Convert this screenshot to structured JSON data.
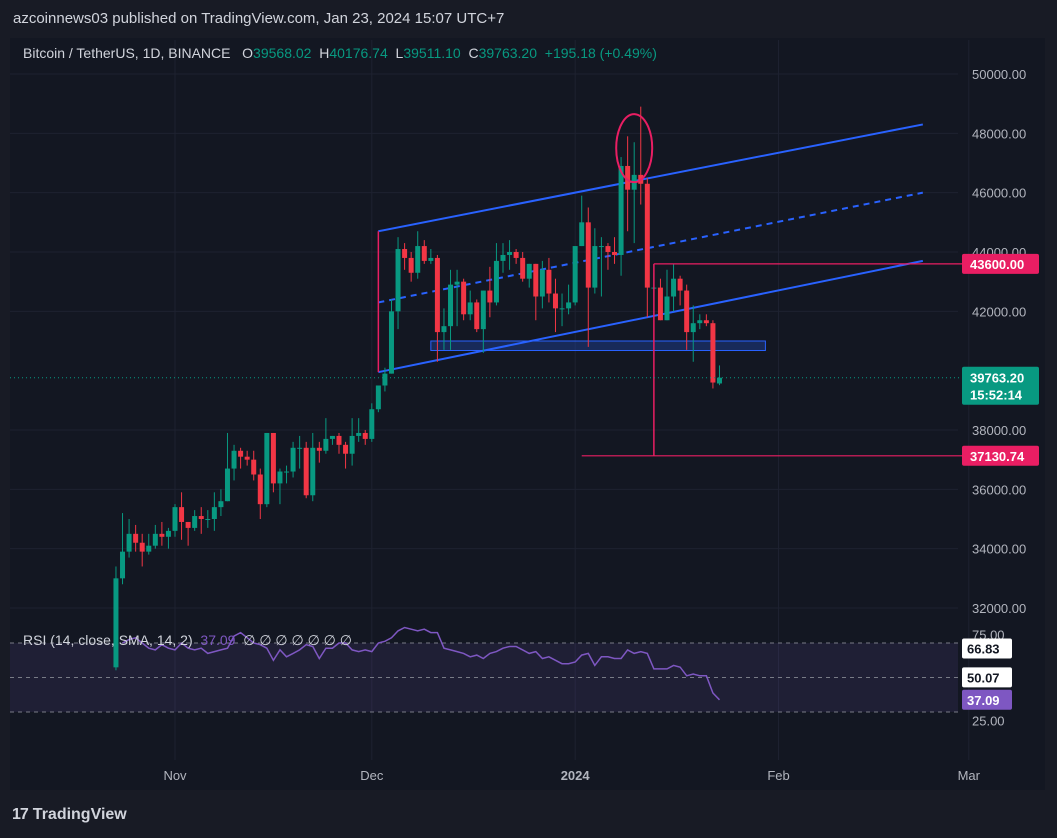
{
  "header": {
    "published": "azcoinnews03 published on TradingView.com, Jan 23, 2024 15:07 UTC+7"
  },
  "legend": {
    "symbol": "Bitcoin / TetherUS, 1D, BINANCE",
    "o_label": "O",
    "o": "39568.02",
    "h_label": "H",
    "h": "40176.74",
    "l_label": "L",
    "l": "39511.10",
    "c_label": "C",
    "c": "39763.20",
    "change": "+195.18 (+0.49%)"
  },
  "rsi_legend": {
    "title": "RSI (14, close, SMA, 14, 2)",
    "value": "37.09",
    "placeholders": "∅ ∅ ∅ ∅ ∅ ∅ ∅"
  },
  "footer": {
    "brand": "TradingView",
    "logo": "17"
  },
  "colors": {
    "up": "#089981",
    "down": "#f23645",
    "channel": "#2962ff",
    "level": "#e91e63",
    "rsi": "#7e57c2",
    "zone": "#2962ff"
  },
  "chart_data": {
    "type": "candlestick",
    "y_ticks": [
      "50000.00",
      "48000.00",
      "46000.00",
      "44000.00",
      "42000.00",
      "38000.00",
      "36000.00",
      "34000.00",
      "32000.00"
    ],
    "ylim": [
      31500,
      50800
    ],
    "x_ticks": [
      "Nov",
      "Dec",
      "2024",
      "Feb",
      "Mar"
    ],
    "x_tick_dates": [
      "2023-11-01",
      "2023-12-01",
      "2024-01-01",
      "2024-02-01",
      "2024-03-01"
    ],
    "ohlc": [
      [
        "2023-10-23",
        30000,
        33400,
        29900,
        33000
      ],
      [
        "2023-10-24",
        33000,
        35200,
        32800,
        33900
      ],
      [
        "2023-10-25",
        33900,
        35000,
        33700,
        34500
      ],
      [
        "2023-10-26",
        34500,
        34800,
        33900,
        34200
      ],
      [
        "2023-10-27",
        34200,
        34500,
        33400,
        33900
      ],
      [
        "2023-10-28",
        33900,
        34500,
        33800,
        34100
      ],
      [
        "2023-10-29",
        34100,
        34800,
        34000,
        34500
      ],
      [
        "2023-10-30",
        34500,
        34900,
        34100,
        34400
      ],
      [
        "2023-10-31",
        34400,
        34700,
        34000,
        34600
      ],
      [
        "2023-11-01",
        34600,
        35500,
        34400,
        35400
      ],
      [
        "2023-11-02",
        35400,
        35900,
        34300,
        34900
      ],
      [
        "2023-11-03",
        34900,
        34900,
        34100,
        34700
      ],
      [
        "2023-11-04",
        34700,
        35300,
        34600,
        35100
      ],
      [
        "2023-11-05",
        35100,
        35400,
        34500,
        35000
      ],
      [
        "2023-11-06",
        35000,
        35300,
        34700,
        35000
      ],
      [
        "2023-11-07",
        35000,
        35900,
        34600,
        35400
      ],
      [
        "2023-11-08",
        35400,
        36000,
        35100,
        35600
      ],
      [
        "2023-11-09",
        35600,
        37900,
        35600,
        36700
      ],
      [
        "2023-11-10",
        36700,
        37500,
        36300,
        37300
      ],
      [
        "2023-11-11",
        37300,
        37400,
        36700,
        37100
      ],
      [
        "2023-11-12",
        37100,
        37300,
        36800,
        37000
      ],
      [
        "2023-11-13",
        37000,
        37300,
        36300,
        36500
      ],
      [
        "2023-11-14",
        36500,
        36700,
        35000,
        35500
      ],
      [
        "2023-11-15",
        35500,
        37900,
        35400,
        37900
      ],
      [
        "2023-11-16",
        37900,
        37900,
        35900,
        36200
      ],
      [
        "2023-11-17",
        36200,
        36700,
        35500,
        36600
      ],
      [
        "2023-11-18",
        36600,
        36800,
        36200,
        36600
      ],
      [
        "2023-11-19",
        36600,
        37600,
        36400,
        37400
      ],
      [
        "2023-11-20",
        37400,
        37800,
        36700,
        37400
      ],
      [
        "2023-11-21",
        37400,
        37600,
        35700,
        35800
      ],
      [
        "2023-11-22",
        35800,
        37900,
        35600,
        37400
      ],
      [
        "2023-11-23",
        37400,
        37600,
        36900,
        37300
      ],
      [
        "2023-11-24",
        37300,
        38400,
        37200,
        37700
      ],
      [
        "2023-11-25",
        37700,
        37800,
        37500,
        37800
      ],
      [
        "2023-11-26",
        37800,
        37900,
        37200,
        37500
      ],
      [
        "2023-11-27",
        37500,
        37600,
        36700,
        37200
      ],
      [
        "2023-11-28",
        37200,
        38400,
        36800,
        37800
      ],
      [
        "2023-11-29",
        37800,
        38400,
        37600,
        37900
      ],
      [
        "2023-11-30",
        37900,
        38000,
        37500,
        37700
      ],
      [
        "2023-12-01",
        37700,
        38900,
        37600,
        38700
      ],
      [
        "2023-12-02",
        38700,
        39400,
        38600,
        39500
      ],
      [
        "2023-12-03",
        39500,
        40100,
        39300,
        39900
      ],
      [
        "2023-12-04",
        39900,
        42400,
        39900,
        42000
      ],
      [
        "2023-12-05",
        42000,
        44500,
        41400,
        44100
      ],
      [
        "2023-12-06",
        44100,
        44300,
        43400,
        43800
      ],
      [
        "2023-12-07",
        43800,
        44000,
        43000,
        43300
      ],
      [
        "2023-12-08",
        43300,
        44700,
        43100,
        44200
      ],
      [
        "2023-12-09",
        44200,
        44400,
        43600,
        43700
      ],
      [
        "2023-12-10",
        43700,
        44100,
        43600,
        43800
      ],
      [
        "2023-12-11",
        43800,
        43900,
        40300,
        41300
      ],
      [
        "2023-12-12",
        41300,
        42100,
        40700,
        41500
      ],
      [
        "2023-12-13",
        41500,
        43400,
        40700,
        42900
      ],
      [
        "2023-12-14",
        42900,
        43400,
        41500,
        43000
      ],
      [
        "2023-12-15",
        43000,
        43100,
        41700,
        41900
      ],
      [
        "2023-12-16",
        41900,
        42700,
        41700,
        42300
      ],
      [
        "2023-12-17",
        42300,
        42400,
        41300,
        41400
      ],
      [
        "2023-12-18",
        41400,
        42700,
        40600,
        42700
      ],
      [
        "2023-12-19",
        42700,
        43500,
        41800,
        42300
      ],
      [
        "2023-12-20",
        42300,
        44300,
        42200,
        43700
      ],
      [
        "2023-12-21",
        43700,
        44300,
        43300,
        43900
      ],
      [
        "2023-12-22",
        43900,
        44400,
        43400,
        44000
      ],
      [
        "2023-12-23",
        44000,
        44100,
        43600,
        43800
      ],
      [
        "2023-12-24",
        43800,
        44000,
        43000,
        43100
      ],
      [
        "2023-12-25",
        43100,
        43600,
        42800,
        43600
      ],
      [
        "2023-12-26",
        43600,
        43600,
        41700,
        42500
      ],
      [
        "2023-12-27",
        42500,
        43700,
        42100,
        43400
      ],
      [
        "2023-12-28",
        43400,
        43800,
        42300,
        42600
      ],
      [
        "2023-12-29",
        42600,
        43100,
        41300,
        42100
      ],
      [
        "2023-12-30",
        42100,
        42600,
        41500,
        42100
      ],
      [
        "2023-12-31",
        42100,
        42900,
        41900,
        42300
      ],
      [
        "2024-01-01",
        42300,
        44200,
        42200,
        44200
      ],
      [
        "2024-01-02",
        44200,
        45900,
        44200,
        45000
      ],
      [
        "2024-01-03",
        45000,
        45500,
        40800,
        42800
      ],
      [
        "2024-01-04",
        42800,
        44800,
        42600,
        44200
      ],
      [
        "2024-01-05",
        44200,
        44500,
        42500,
        44200
      ],
      [
        "2024-01-06",
        44200,
        44300,
        43400,
        44000
      ],
      [
        "2024-01-07",
        44000,
        44500,
        43600,
        43900
      ],
      [
        "2024-01-08",
        43900,
        47200,
        43200,
        46900
      ],
      [
        "2024-01-09",
        46900,
        47900,
        44700,
        46100
      ],
      [
        "2024-01-10",
        46100,
        47700,
        44300,
        46600
      ],
      [
        "2024-01-11",
        46600,
        48900,
        45600,
        46300
      ],
      [
        "2024-01-12",
        46300,
        46500,
        41800,
        42800
      ],
      [
        "2024-01-13",
        42800,
        43300,
        42400,
        42800
      ],
      [
        "2024-01-14",
        42800,
        43100,
        41700,
        41700
      ],
      [
        "2024-01-15",
        41700,
        43400,
        41700,
        42500
      ],
      [
        "2024-01-16",
        42500,
        43600,
        42000,
        43100
      ],
      [
        "2024-01-17",
        43100,
        43200,
        42200,
        42700
      ],
      [
        "2024-01-18",
        42700,
        42900,
        40700,
        41300
      ],
      [
        "2024-01-19",
        41300,
        42200,
        40300,
        41600
      ],
      [
        "2024-01-20",
        41600,
        41900,
        41400,
        41700
      ],
      [
        "2024-01-21",
        41700,
        41900,
        41500,
        41600
      ],
      [
        "2024-01-22",
        41600,
        41700,
        39400,
        39600
      ],
      [
        "2024-01-23",
        39568.02,
        40176.74,
        39511.1,
        39763.2
      ]
    ],
    "levels": [
      {
        "label": "43600.00",
        "value": 43600
      },
      {
        "label": "37130.74",
        "value": 37130.74
      }
    ],
    "current": {
      "price": "39763.20",
      "countdown": "15:52:14",
      "value": 39763.2
    },
    "rsi": {
      "ticks": [
        "75.00",
        "25.00"
      ],
      "labels": [
        "66.83",
        "50.07",
        "37.09"
      ],
      "upper": 70,
      "lower": 30,
      "middle": 50,
      "values": [
        70,
        72,
        73,
        70,
        67,
        66,
        69,
        67,
        66,
        70,
        67,
        66,
        67,
        64,
        65,
        66,
        67,
        74,
        76,
        73,
        70,
        69,
        67,
        60,
        66,
        62,
        64,
        66,
        69,
        68,
        61,
        67,
        67,
        70,
        70,
        66,
        65,
        66,
        65,
        70,
        71,
        73,
        77,
        79,
        78,
        77,
        78,
        76,
        76,
        67,
        66,
        65,
        64,
        62,
        63,
        61,
        64,
        65,
        67,
        68,
        68,
        66,
        64,
        65,
        61,
        62,
        60,
        58,
        58,
        59,
        63,
        64,
        57,
        62,
        62,
        61,
        61,
        66,
        64,
        65,
        64,
        55,
        55,
        55,
        57,
        56,
        51,
        52,
        51,
        51,
        41,
        37.09
      ]
    }
  }
}
